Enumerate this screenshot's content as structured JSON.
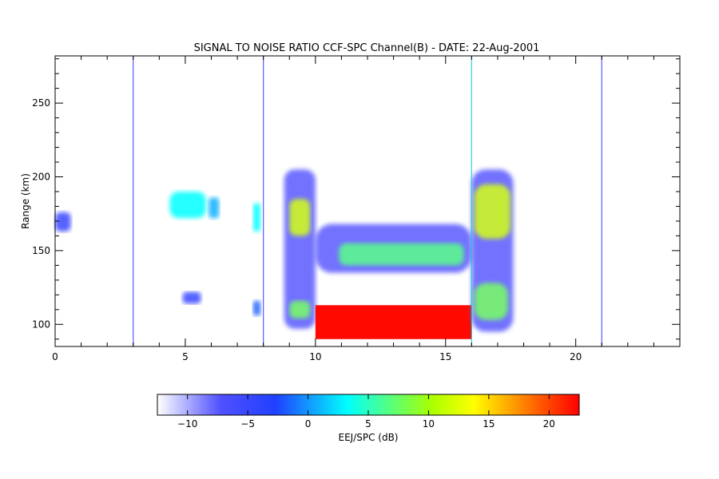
{
  "chart_data": {
    "type": "heatmap",
    "title": "SIGNAL TO NOISE RATIO CCF-SPC Channel(B) - DATE: 22-Aug-2001",
    "xlabel": "",
    "ylabel": "Range (km)",
    "xlim": [
      0,
      24
    ],
    "ylim": [
      85,
      282
    ],
    "x_ticks": [
      0,
      5,
      10,
      15,
      20
    ],
    "x_tick_labels": [
      "0",
      "5",
      "10",
      "15",
      "20"
    ],
    "y_ticks": [
      100,
      150,
      200,
      250
    ],
    "y_tick_labels": [
      "100",
      "150",
      "200",
      "250"
    ],
    "colorbar": {
      "label": "EEJ/SPC (dB)",
      "range": [
        -12.5,
        22.5
      ],
      "ticks": [
        -10,
        -5,
        0,
        5,
        10,
        15,
        20
      ],
      "tick_labels": [
        "−10",
        "−5",
        "0",
        "5",
        "10",
        "15",
        "20"
      ],
      "colors": [
        "#ffffff",
        "#3333ff",
        "#00ffff",
        "#ffff00",
        "#ff0000"
      ]
    },
    "regions": [
      {
        "name": "early-echo",
        "x": [
          0.0,
          0.6
        ],
        "y": [
          163,
          176
        ],
        "snr_db": -6
      },
      {
        "name": "echo-4-6",
        "x": [
          4.4,
          5.8
        ],
        "y": [
          172,
          190
        ],
        "snr_db": 0
      },
      {
        "name": "echo-6",
        "x": [
          5.9,
          6.3
        ],
        "y": [
          172,
          186
        ],
        "snr_db": -2
      },
      {
        "name": "lower-echo-5",
        "x": [
          4.9,
          5.6
        ],
        "y": [
          114,
          122
        ],
        "snr_db": -6
      },
      {
        "name": "echo-7.7",
        "x": [
          7.6,
          7.9
        ],
        "y": [
          163,
          182
        ],
        "snr_db": 0
      },
      {
        "name": "echo-7.7-low",
        "x": [
          7.6,
          7.9
        ],
        "y": [
          106,
          116
        ],
        "snr_db": -4
      },
      {
        "name": "column-9",
        "x": [
          8.8,
          10.0
        ],
        "y": [
          97,
          205
        ],
        "snr_db": -8
      },
      {
        "name": "core-9-upper",
        "x": [
          9.0,
          9.8
        ],
        "y": [
          160,
          185
        ],
        "snr_db": 8
      },
      {
        "name": "core-9-lower",
        "x": [
          9.0,
          9.8
        ],
        "y": [
          104,
          116
        ],
        "snr_db": 4
      },
      {
        "name": "band-10-16",
        "x": [
          10.0,
          16.0
        ],
        "y": [
          135,
          168
        ],
        "snr_db": -8
      },
      {
        "name": "band-10-16-core",
        "x": [
          10.9,
          15.7
        ],
        "y": [
          140,
          155
        ],
        "snr_db": 3
      },
      {
        "name": "red-block",
        "x": [
          10.0,
          16.0
        ],
        "y": [
          90,
          113
        ],
        "snr_db": 22
      },
      {
        "name": "column-16.5",
        "x": [
          16.0,
          17.6
        ],
        "y": [
          95,
          205
        ],
        "snr_db": -8
      },
      {
        "name": "core-16.5-upper",
        "x": [
          16.1,
          17.5
        ],
        "y": [
          158,
          195
        ],
        "snr_db": 8
      },
      {
        "name": "core-16.5-lower",
        "x": [
          16.1,
          17.4
        ],
        "y": [
          103,
          128
        ],
        "snr_db": 4
      }
    ],
    "vertical_lines": [
      3.0,
      8.0,
      16.0,
      21.0
    ]
  }
}
